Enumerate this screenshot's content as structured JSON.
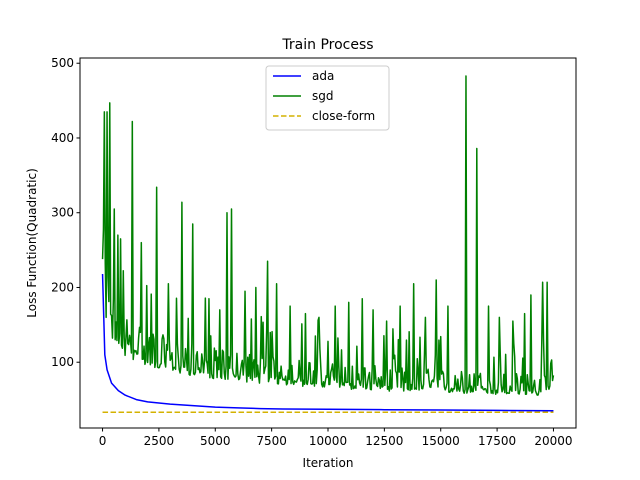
{
  "chart_data": {
    "type": "line",
    "title": "Train Process",
    "xlabel": "Iteration",
    "ylabel": "Loss Function(Quadratic)",
    "xlim": [
      -1000,
      21000
    ],
    "ylim": [
      12,
      507
    ],
    "xticks": [
      0,
      2500,
      5000,
      7500,
      10000,
      12500,
      15000,
      17500,
      20000
    ],
    "yticks": [
      100,
      200,
      300,
      400,
      500
    ],
    "grid": false,
    "legend_position": "upper-center",
    "series": [
      {
        "name": "ada",
        "color": "#0000ff",
        "style": "solid",
        "x": [
          0,
          100,
          200,
          400,
          700,
          1000,
          1500,
          2000,
          3000,
          4000,
          5000,
          6000,
          7000,
          8000,
          10000,
          12500,
          15000,
          17500,
          20000
        ],
        "y": [
          218,
          110,
          90,
          72,
          62,
          56,
          50,
          47,
          44,
          42,
          40,
          39,
          38,
          37.5,
          37,
          36.5,
          36,
          35.5,
          35
        ]
      },
      {
        "name": "sgd",
        "color": "#008000",
        "style": "solid",
        "baseline": {
          "x": [
            0,
            200,
            500,
            1000,
            2000,
            3000,
            5000,
            7500,
            10000,
            12500,
            15000,
            17500,
            20000
          ],
          "y": [
            215,
            170,
            140,
            122,
            108,
            98,
            88,
            80,
            74,
            70,
            67,
            64,
            62
          ]
        },
        "spikes": [
          {
            "x": 60,
            "y": 435
          },
          {
            "x": 180,
            "y": 435
          },
          {
            "x": 300,
            "y": 447
          },
          {
            "x": 500,
            "y": 305
          },
          {
            "x": 800,
            "y": 265
          },
          {
            "x": 1300,
            "y": 422
          },
          {
            "x": 1700,
            "y": 260
          },
          {
            "x": 2400,
            "y": 334
          },
          {
            "x": 2900,
            "y": 205
          },
          {
            "x": 3500,
            "y": 314
          },
          {
            "x": 4000,
            "y": 285
          },
          {
            "x": 4700,
            "y": 185
          },
          {
            "x": 5500,
            "y": 300
          },
          {
            "x": 5700,
            "y": 305
          },
          {
            "x": 6300,
            "y": 195
          },
          {
            "x": 6800,
            "y": 200
          },
          {
            "x": 7300,
            "y": 235
          },
          {
            "x": 7700,
            "y": 205
          },
          {
            "x": 8300,
            "y": 175
          },
          {
            "x": 9000,
            "y": 165
          },
          {
            "x": 9600,
            "y": 160
          },
          {
            "x": 10300,
            "y": 175
          },
          {
            "x": 10900,
            "y": 180
          },
          {
            "x": 11500,
            "y": 185
          },
          {
            "x": 12000,
            "y": 170
          },
          {
            "x": 12600,
            "y": 155
          },
          {
            "x": 13200,
            "y": 175
          },
          {
            "x": 13800,
            "y": 205
          },
          {
            "x": 14300,
            "y": 160
          },
          {
            "x": 14800,
            "y": 210
          },
          {
            "x": 15300,
            "y": 175
          },
          {
            "x": 16100,
            "y": 483
          },
          {
            "x": 16600,
            "y": 386
          },
          {
            "x": 17100,
            "y": 175
          },
          {
            "x": 17600,
            "y": 160
          },
          {
            "x": 18200,
            "y": 155
          },
          {
            "x": 18700,
            "y": 165
          },
          {
            "x": 19000,
            "y": 190
          },
          {
            "x": 19500,
            "y": 207
          },
          {
            "x": 19700,
            "y": 207
          },
          {
            "x": 19900,
            "y": 103
          }
        ]
      },
      {
        "name": "close-form",
        "color": "#d4b200",
        "style": "dashed",
        "x": [
          0,
          20000
        ],
        "y": [
          33,
          33
        ]
      }
    ]
  }
}
